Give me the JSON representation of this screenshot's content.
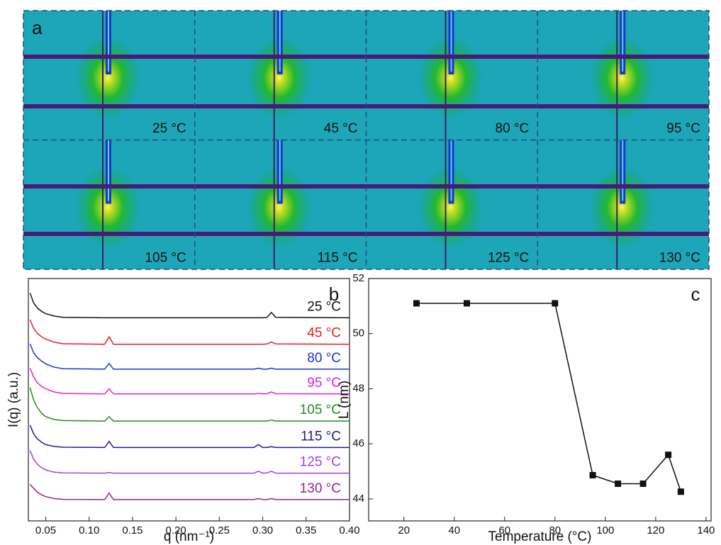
{
  "chart_data": [
    {
      "type": "image-grid",
      "panel": "a",
      "labels": [
        "25 °C",
        "45 °C",
        "80 °C",
        "95 °C",
        "105 °C",
        "115 °C",
        "125 °C",
        "130 °C"
      ]
    },
    {
      "type": "line",
      "panel": "b",
      "xlabel": "q (nm⁻¹)",
      "ylabel": "I(q) (a.u.)",
      "x": [
        0.032,
        0.036,
        0.04,
        0.045,
        0.05,
        0.06,
        0.07,
        0.118,
        0.123,
        0.128,
        0.29,
        0.295,
        0.3,
        0.305,
        0.31,
        0.315,
        0.4
      ],
      "series": [
        {
          "name": "25 °C",
          "color": "#111111",
          "values": [
            9.4,
            9.0,
            8.8,
            8.65,
            8.55,
            8.45,
            8.4,
            8.38,
            8.38,
            8.38,
            8.38,
            8.38,
            8.38,
            8.4,
            8.6,
            8.4,
            8.38
          ]
        },
        {
          "name": "45 °C",
          "color": "#e02020",
          "values": [
            8.3,
            7.95,
            7.75,
            7.6,
            7.5,
            7.37,
            7.31,
            7.29,
            7.6,
            7.29,
            7.29,
            7.29,
            7.29,
            7.3,
            7.38,
            7.3,
            7.29
          ]
        },
        {
          "name": "80 °C",
          "color": "#2030d0",
          "values": [
            7.3,
            6.95,
            6.75,
            6.6,
            6.48,
            6.34,
            6.28,
            6.26,
            6.5,
            6.26,
            6.26,
            6.3,
            6.26,
            6.26,
            6.3,
            6.26,
            6.26
          ]
        },
        {
          "name": "95 °C",
          "color": "#e020d0",
          "values": [
            6.3,
            5.95,
            5.72,
            5.55,
            5.45,
            5.32,
            5.26,
            5.24,
            5.45,
            5.24,
            5.24,
            5.26,
            5.24,
            5.25,
            5.32,
            5.25,
            5.24
          ]
        },
        {
          "name": "105 °C",
          "color": "#208a20",
          "values": [
            5.5,
            5.0,
            4.7,
            4.45,
            4.3,
            4.18,
            4.14,
            4.12,
            4.3,
            4.12,
            4.12,
            4.12,
            4.12,
            4.12,
            4.16,
            4.12,
            4.12
          ]
        },
        {
          "name": "115 °C",
          "color": "#1c1c8c",
          "values": [
            3.95,
            3.6,
            3.4,
            3.25,
            3.15,
            3.07,
            3.04,
            3.03,
            3.28,
            3.03,
            3.03,
            3.15,
            3.03,
            3.03,
            3.06,
            3.03,
            3.03
          ]
        },
        {
          "name": "125 °C",
          "color": "#a040e0",
          "values": [
            2.9,
            2.55,
            2.35,
            2.2,
            2.1,
            2.01,
            1.98,
            1.97,
            2.0,
            1.97,
            1.97,
            2.05,
            1.97,
            1.98,
            2.05,
            1.97,
            1.97
          ]
        },
        {
          "name": "130 °C",
          "color": "#a0208a",
          "values": [
            1.5,
            1.35,
            1.2,
            1.08,
            1.0,
            0.92,
            0.89,
            0.88,
            1.15,
            0.88,
            0.88,
            0.92,
            0.88,
            0.88,
            0.92,
            0.88,
            0.88
          ]
        }
      ],
      "xlim": [
        0.03,
        0.4
      ],
      "xticks": [
        0.05,
        {
          "value": 0.1,
          "label": "0.10"
        },
        0.15,
        {
          "value": 0.2,
          "label": "0.20"
        },
        0.25,
        {
          "value": 0.3,
          "label": "0.30"
        },
        0.35,
        {
          "value": 0.4,
          "label": "0.40"
        }
      ],
      "ylim": [
        0,
        10
      ]
    },
    {
      "type": "line",
      "panel": "c",
      "xlabel": "Temperature (°C)",
      "ylabel": "L (nm)",
      "x": [
        25,
        45,
        80,
        95,
        105,
        115,
        125,
        130
      ],
      "values": [
        51.1,
        51.1,
        51.1,
        44.86,
        44.55,
        44.55,
        45.6,
        44.26
      ],
      "color": "#111111",
      "marker": "square",
      "xlim": [
        6,
        142
      ],
      "xticks": [
        20,
        40,
        60,
        80,
        100,
        120,
        140
      ],
      "ylim": [
        43.2,
        52
      ],
      "yticks": [
        44,
        46,
        48,
        50,
        52
      ]
    }
  ]
}
